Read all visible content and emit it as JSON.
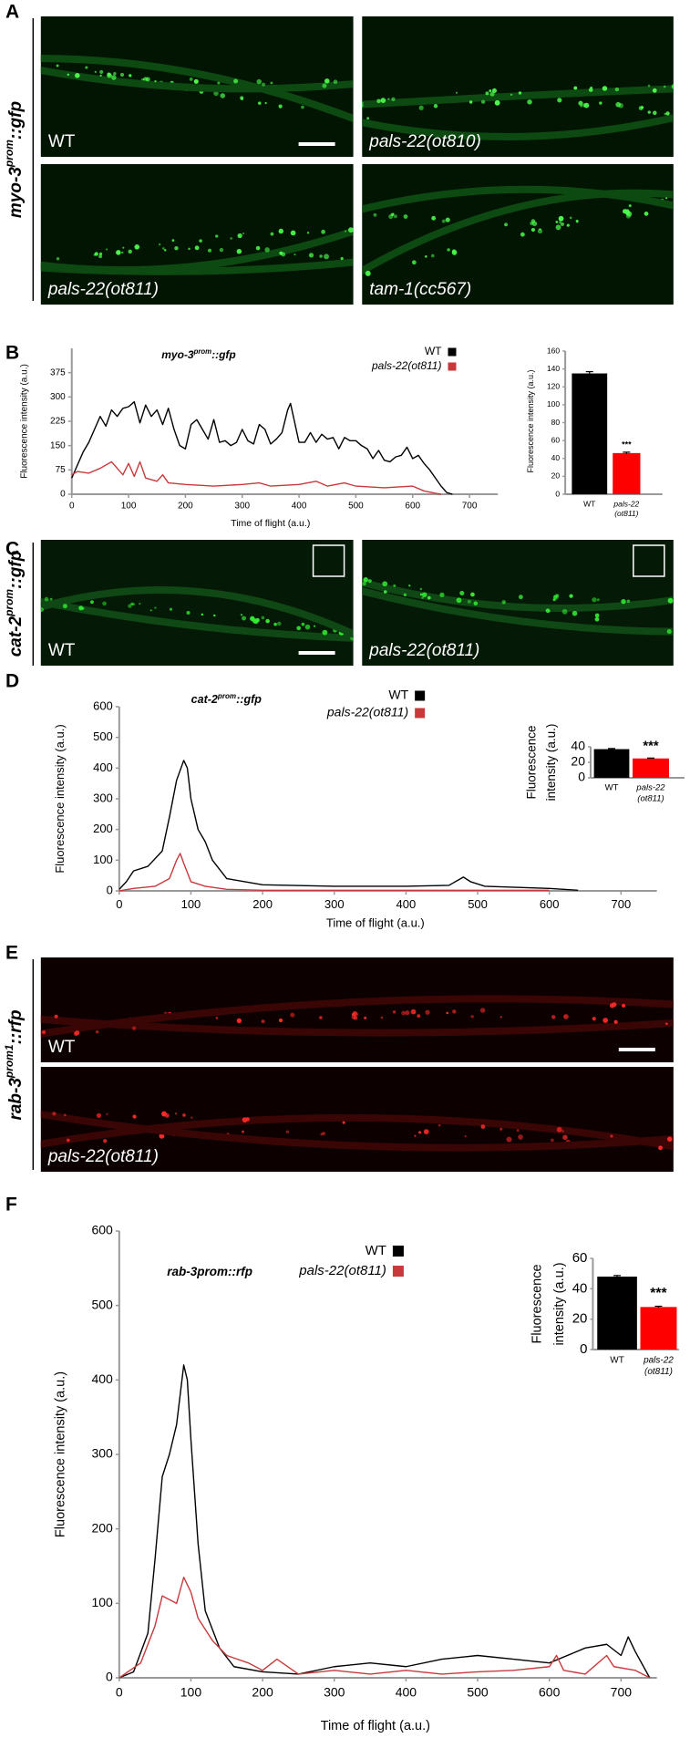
{
  "panel_labels": [
    "A",
    "B",
    "C",
    "D",
    "E",
    "F"
  ],
  "micrographs": [
    {
      "marker": {
        "parts": [
          "myo-3",
          "prom",
          "::gfp"
        ]
      },
      "labels": [
        "WT",
        "pals-22(ot810)",
        "pals-22(ot811)",
        "tam-1(cc567)"
      ]
    },
    {
      "marker": {
        "parts": [
          "cat-2",
          "prom",
          "::gfp"
        ]
      },
      "labels": [
        "WT",
        "pals-22(ot811)"
      ]
    },
    {
      "marker": {
        "parts": [
          "rab-3",
          "prom1",
          "::rfp"
        ]
      },
      "labels": [
        "WT",
        "pals-22(ot811)"
      ]
    }
  ],
  "chart_data": [
    {
      "type": "line",
      "title": {
        "parts": [
          "myo-3",
          "prom",
          "::gfp"
        ]
      },
      "xlabel": "Time of flight (a.u.)",
      "ylabel": "Fluorescence intensity (a.u.)",
      "xlim": [
        0,
        750
      ],
      "ylim": [
        0,
        450
      ],
      "xticks": [
        0,
        100,
        200,
        300,
        400,
        500,
        600,
        700
      ],
      "yticks": [
        0,
        75,
        150,
        225,
        300,
        375
      ],
      "series": [
        {
          "name": "WT",
          "color": "#000000",
          "x": [
            0,
            10,
            20,
            30,
            40,
            50,
            60,
            70,
            80,
            90,
            100,
            110,
            120,
            130,
            140,
            150,
            160,
            170,
            180,
            190,
            200,
            210,
            220,
            230,
            240,
            250,
            260,
            270,
            280,
            290,
            300,
            310,
            320,
            330,
            340,
            350,
            360,
            370,
            380,
            385,
            390,
            400,
            410,
            420,
            430,
            440,
            450,
            460,
            470,
            480,
            490,
            500,
            510,
            520,
            530,
            540,
            550,
            560,
            570,
            580,
            590,
            600,
            610,
            620,
            630,
            640,
            650,
            660,
            670
          ],
          "values": [
            50,
            90,
            130,
            160,
            200,
            240,
            210,
            260,
            240,
            265,
            270,
            285,
            220,
            275,
            240,
            260,
            215,
            265,
            200,
            150,
            140,
            215,
            230,
            200,
            170,
            230,
            160,
            165,
            150,
            160,
            200,
            165,
            155,
            215,
            200,
            155,
            170,
            190,
            260,
            280,
            240,
            160,
            160,
            190,
            160,
            185,
            170,
            175,
            140,
            175,
            165,
            165,
            150,
            140,
            110,
            135,
            105,
            100,
            115,
            120,
            145,
            110,
            120,
            95,
            75,
            50,
            25,
            5,
            0
          ]
        },
        {
          "name": "pals-22(ot811)",
          "color": "#c8393b",
          "x": [
            0,
            10,
            30,
            50,
            70,
            80,
            90,
            100,
            110,
            120,
            130,
            150,
            160,
            170,
            200,
            250,
            300,
            330,
            350,
            400,
            430,
            450,
            480,
            500,
            550,
            600,
            620,
            640,
            650
          ],
          "values": [
            60,
            70,
            65,
            80,
            100,
            80,
            60,
            95,
            55,
            100,
            50,
            40,
            60,
            35,
            30,
            25,
            30,
            35,
            25,
            30,
            40,
            25,
            35,
            25,
            20,
            25,
            10,
            3,
            0
          ]
        }
      ]
    },
    {
      "type": "bar",
      "ylabel": "Fluorescence intensity (a.u.)",
      "categories": [
        [
          "WT"
        ],
        [
          "pals-22",
          "(ot811)"
        ]
      ],
      "values": [
        135,
        46
      ],
      "errors": [
        2,
        1
      ],
      "colors": [
        "#000000",
        "#ff0000"
      ],
      "annotation": "***",
      "ylim": [
        0,
        160
      ],
      "yticks": [
        0,
        20,
        40,
        60,
        80,
        100,
        120,
        140,
        160
      ]
    },
    {
      "type": "line",
      "title": {
        "parts": [
          "cat-2",
          "prom",
          "::gfp"
        ]
      },
      "xlabel": "Time of flight (a.u.)",
      "ylabel": "Fluorescence intensity (a.u.)",
      "xlim": [
        0,
        750
      ],
      "ylim": [
        0,
        600
      ],
      "xticks": [
        0,
        100,
        200,
        300,
        400,
        500,
        600,
        700
      ],
      "yticks": [
        0,
        100,
        200,
        300,
        400,
        500,
        600
      ],
      "series": [
        {
          "name": "WT",
          "color": "#000000",
          "x": [
            0,
            10,
            20,
            40,
            60,
            70,
            80,
            90,
            95,
            100,
            110,
            120,
            130,
            150,
            200,
            300,
            400,
            460,
            480,
            490,
            510,
            600,
            640
          ],
          "values": [
            5,
            30,
            65,
            80,
            130,
            240,
            360,
            425,
            400,
            300,
            200,
            160,
            100,
            40,
            20,
            15,
            15,
            18,
            45,
            30,
            15,
            8,
            2
          ]
        },
        {
          "name": "pals-22(ot811)",
          "color": "#c8393b",
          "x": [
            0,
            20,
            50,
            70,
            80,
            85,
            90,
            100,
            120,
            150,
            200,
            300,
            400,
            500,
            600
          ],
          "values": [
            0,
            8,
            15,
            40,
            100,
            122,
            90,
            30,
            15,
            5,
            2,
            2,
            2,
            2,
            2
          ]
        }
      ]
    },
    {
      "type": "bar",
      "ylabel": [
        "Fluorescence",
        "intensity (a.u.)"
      ],
      "categories": [
        [
          "WT"
        ],
        [
          "pals-22",
          "(ot811)"
        ]
      ],
      "values": [
        37,
        25
      ],
      "errors": [
        0.8,
        0.5
      ],
      "colors": [
        "#000000",
        "#ff0000"
      ],
      "annotation": "***",
      "ylim": [
        0,
        40
      ],
      "yticks": [
        0,
        20,
        40
      ]
    },
    {
      "type": "line",
      "title": {
        "parts": [
          "rab-3prom::rfp"
        ]
      },
      "xlabel": "Time of flight (a.u.)",
      "ylabel": "Fluorescence intensity (a.u.)",
      "xlim": [
        0,
        750
      ],
      "ylim": [
        0,
        600
      ],
      "xticks": [
        0,
        100,
        200,
        300,
        400,
        500,
        600,
        700
      ],
      "yticks": [
        0,
        100,
        200,
        300,
        400,
        500,
        600
      ],
      "series": [
        {
          "name": "WT",
          "color": "#000000",
          "x": [
            0,
            20,
            40,
            50,
            60,
            70,
            80,
            90,
            95,
            100,
            110,
            120,
            140,
            160,
            200,
            250,
            300,
            350,
            400,
            450,
            500,
            550,
            600,
            650,
            680,
            700,
            710,
            720,
            740
          ],
          "values": [
            0,
            8,
            60,
            160,
            270,
            300,
            340,
            420,
            400,
            320,
            180,
            90,
            40,
            15,
            8,
            5,
            15,
            20,
            15,
            25,
            30,
            25,
            20,
            40,
            45,
            30,
            55,
            35,
            0
          ]
        },
        {
          "name": "pals-22(ot811)",
          "color": "#c8393b",
          "x": [
            0,
            30,
            50,
            60,
            70,
            80,
            90,
            100,
            110,
            130,
            150,
            180,
            200,
            220,
            250,
            300,
            350,
            400,
            450,
            500,
            550,
            600,
            610,
            620,
            650,
            680,
            690,
            720,
            740
          ],
          "values": [
            0,
            20,
            70,
            110,
            105,
            100,
            135,
            115,
            80,
            50,
            30,
            20,
            10,
            25,
            5,
            10,
            5,
            10,
            5,
            8,
            10,
            15,
            30,
            10,
            5,
            30,
            15,
            10,
            0
          ]
        }
      ]
    },
    {
      "type": "bar",
      "ylabel": [
        "Fluorescence",
        "intensity (a.u.)"
      ],
      "categories": [
        [
          "WT"
        ],
        [
          "pals-22",
          "(ot811)"
        ]
      ],
      "values": [
        48,
        28
      ],
      "errors": [
        0.7,
        0.5
      ],
      "colors": [
        "#000000",
        "#ff0000"
      ],
      "annotation": "***",
      "ylim": [
        0,
        60
      ],
      "yticks": [
        0,
        20,
        40,
        60
      ]
    }
  ]
}
